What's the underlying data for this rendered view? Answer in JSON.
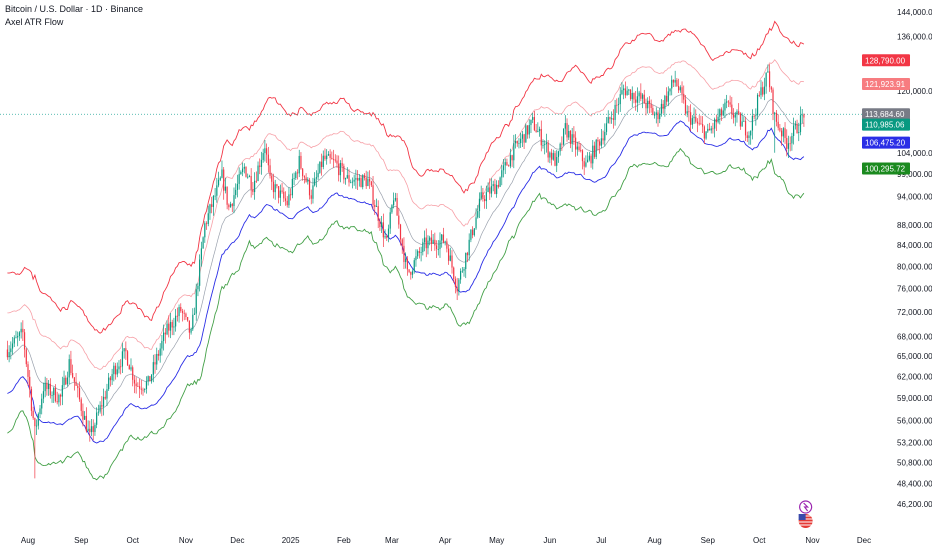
{
  "header": {
    "title": "Bitcoin / U.S. Dollar · 1D · Binance",
    "indicator": "Axel ATR Flow"
  },
  "colors": {
    "up": "#089981",
    "down": "#f23645",
    "band_outer_upper": "#f23645",
    "band_inner_upper": "#f7a1a8",
    "band_mid": "#9aa1ad",
    "band_lower_blue": "#2a2ee6",
    "band_outer_lower": "#43a047",
    "price_line": "#26a69a"
  },
  "chart_data": {
    "type": "candlestick",
    "y_scale": "log",
    "ylim": [
      44500,
      146000
    ],
    "y_ticks": [
      "144,000.00",
      "136,000.00",
      "120,000.00",
      "104,000.00",
      "99,000.00",
      "94,000.00",
      "88,000.00",
      "84,000.00",
      "80,000.00",
      "76,000.00",
      "72,000.00",
      "68,000.00",
      "65,000.00",
      "62,000.00",
      "59,000.00",
      "56,000.00",
      "53,200.00",
      "50,800.00",
      "48,400.00",
      "46,200.00"
    ],
    "x_labels": [
      "Aug",
      "Sep",
      "Oct",
      "Nov",
      "Dec",
      "2025",
      "Feb",
      "Mar",
      "Apr",
      "May",
      "Jun",
      "Jul",
      "Aug",
      "Sep",
      "Oct",
      "Nov",
      "Dec"
    ],
    "x_label_dates": [
      "2024-08-01",
      "2024-09-01",
      "2024-10-01",
      "2024-11-01",
      "2024-12-01",
      "2025-01-01",
      "2025-02-01",
      "2025-03-01",
      "2025-04-01",
      "2025-05-01",
      "2025-06-01",
      "2025-07-01",
      "2025-08-01",
      "2025-09-01",
      "2025-10-01",
      "2025-11-01",
      "2025-12-01"
    ],
    "close_anchors": [
      [
        "2024-07-20",
        66000
      ],
      [
        "2024-07-29",
        68500
      ],
      [
        "2024-08-05",
        54500
      ],
      [
        "2024-08-10",
        60500
      ],
      [
        "2024-08-20",
        59000
      ],
      [
        "2024-08-25",
        64000
      ],
      [
        "2024-09-06",
        53800
      ],
      [
        "2024-09-20",
        63000
      ],
      [
        "2024-09-27",
        65500
      ],
      [
        "2024-10-03",
        60800
      ],
      [
        "2024-10-10",
        61000
      ],
      [
        "2024-10-20",
        68500
      ],
      [
        "2024-10-29",
        72300
      ],
      [
        "2024-11-04",
        68200
      ],
      [
        "2024-11-12",
        88000
      ],
      [
        "2024-11-22",
        98500
      ],
      [
        "2024-11-26",
        91500
      ],
      [
        "2024-12-05",
        100500
      ],
      [
        "2024-12-10",
        96500
      ],
      [
        "2024-12-17",
        106000
      ],
      [
        "2024-12-20",
        97000
      ],
      [
        "2024-12-30",
        92500
      ],
      [
        "2025-01-06",
        101900
      ],
      [
        "2025-01-13",
        94500
      ],
      [
        "2025-01-20",
        102500
      ],
      [
        "2025-01-27",
        101500
      ],
      [
        "2025-02-03",
        97800
      ],
      [
        "2025-02-15",
        97500
      ],
      [
        "2025-02-26",
        84300
      ],
      [
        "2025-03-02",
        94200
      ],
      [
        "2025-03-10",
        78500
      ],
      [
        "2025-03-20",
        84100
      ],
      [
        "2025-04-01",
        85000
      ],
      [
        "2025-04-08",
        76300
      ],
      [
        "2025-04-15",
        84500
      ],
      [
        "2025-04-22",
        93500
      ],
      [
        "2025-05-01",
        96500
      ],
      [
        "2025-05-10",
        104000
      ],
      [
        "2025-05-22",
        111500
      ],
      [
        "2025-05-31",
        104500
      ],
      [
        "2025-06-05",
        101500
      ],
      [
        "2025-06-10",
        110000
      ],
      [
        "2025-06-22",
        101000
      ],
      [
        "2025-06-30",
        107000
      ],
      [
        "2025-07-10",
        116000
      ],
      [
        "2025-07-14",
        120500
      ],
      [
        "2025-07-25",
        117500
      ],
      [
        "2025-08-02",
        113000
      ],
      [
        "2025-08-13",
        123300
      ],
      [
        "2025-08-20",
        113500
      ],
      [
        "2025-09-01",
        108500
      ],
      [
        "2025-09-12",
        115900
      ],
      [
        "2025-09-25",
        109000
      ],
      [
        "2025-10-01",
        118500
      ],
      [
        "2025-10-06",
        124800
      ],
      [
        "2025-10-10",
        112800
      ],
      [
        "2025-10-17",
        106500
      ],
      [
        "2025-10-24",
        111000
      ],
      [
        "2025-10-27",
        114000
      ]
    ],
    "last_price": "113,684.60",
    "price_tags": [
      {
        "label": "128,790.00",
        "value": 128790,
        "color": "#f23645"
      },
      {
        "label": "121,923.91",
        "value": 121923.91,
        "color": "#f77c80"
      },
      {
        "label": "113,684.60",
        "value": 113684.6,
        "color": "#787b86"
      },
      {
        "label": "110,985.06",
        "value": 110985.06,
        "color": "#089981"
      },
      {
        "label": "106,475.20",
        "value": 106475.2,
        "color": "#2a2ee6"
      },
      {
        "label": "100,295.72",
        "value": 100295.72,
        "color": "#1b8a1f"
      }
    ]
  }
}
